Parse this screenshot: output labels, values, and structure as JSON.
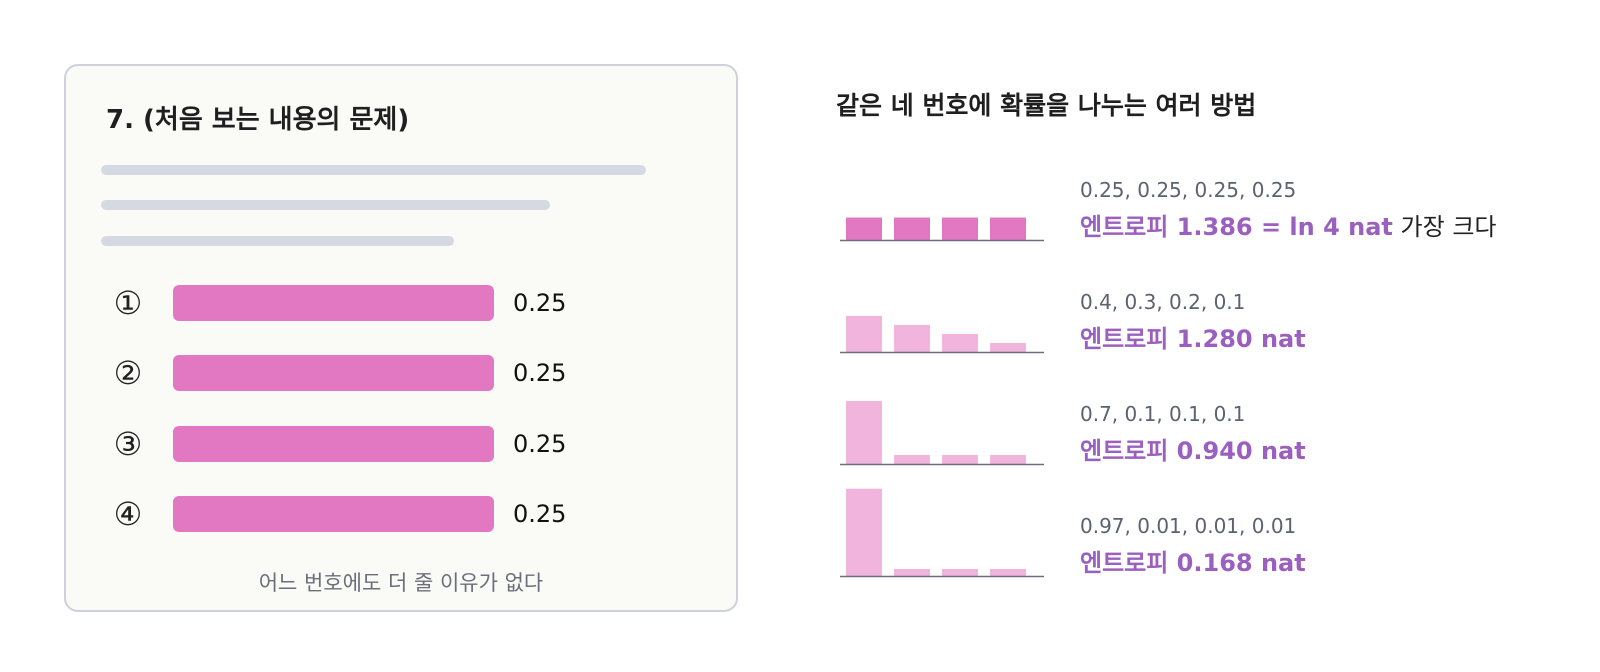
{
  "card": {
    "title": "7. (처음 보는 내용의 문제)",
    "options": [
      {
        "mark": "①",
        "value": "0.25",
        "fraction": 0.25
      },
      {
        "mark": "②",
        "value": "0.25",
        "fraction": 0.25
      },
      {
        "mark": "③",
        "value": "0.25",
        "fraction": 0.25
      },
      {
        "mark": "④",
        "value": "0.25",
        "fraction": 0.25
      }
    ],
    "caption": "어느 번호에도 더 줄 이유가 없다"
  },
  "heading": "같은 네 번호에 확률을 나누는 여러 방법",
  "chart_data": {
    "type": "bar",
    "title": "같은 네 번호에 확률을 나누는 여러 방법",
    "ylim": [
      0,
      1
    ],
    "distributions": [
      {
        "values_text": "0.25, 0.25, 0.25, 0.25",
        "values": [
          0.25,
          0.25,
          0.25,
          0.25
        ],
        "entropy": "엔트로피 1.386 = ln 4 nat",
        "note": "가장 크다",
        "color": "#e278c2"
      },
      {
        "values_text": "0.4, 0.3, 0.2, 0.1",
        "values": [
          0.4,
          0.3,
          0.2,
          0.1
        ],
        "entropy": "엔트로피 1.280 nat",
        "note": "",
        "color": "#f0b4dd"
      },
      {
        "values_text": "0.7, 0.1, 0.1, 0.1",
        "values": [
          0.7,
          0.1,
          0.1,
          0.1
        ],
        "entropy": "엔트로피 0.940 nat",
        "note": "",
        "color": "#f0b4dd"
      },
      {
        "values_text": "0.97, 0.01, 0.01, 0.01",
        "values": [
          0.97,
          0.01,
          0.01,
          0.01
        ],
        "entropy": "엔트로피 0.168 nat",
        "note": "",
        "color": "#f0b4dd"
      }
    ]
  },
  "colors": {
    "card_bg": "#fafaf6",
    "card_border": "#cfd0de",
    "option_bar": "#e278c2",
    "entropy_text": "#9b5fc0",
    "baseline": "#6e6e80"
  }
}
